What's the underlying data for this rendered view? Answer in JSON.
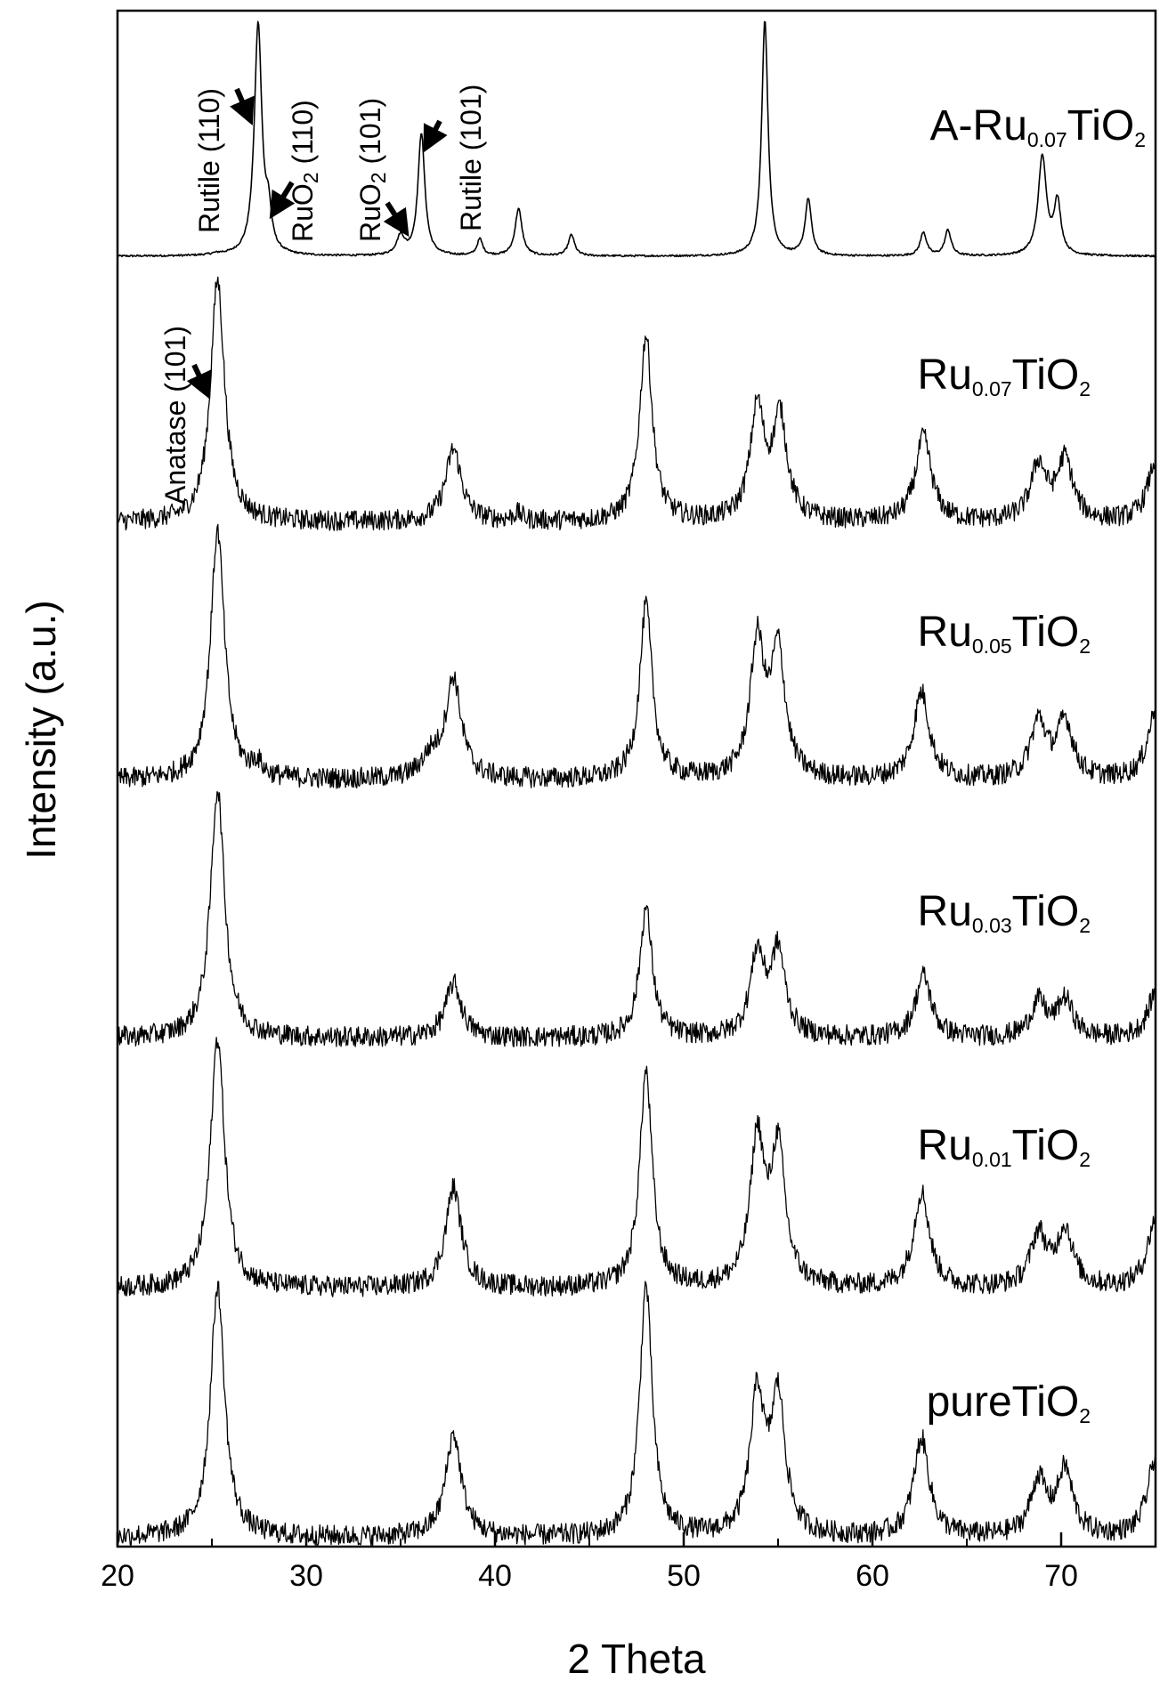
{
  "chart_data": {
    "type": "line",
    "xlabel": "2 Theta",
    "ylabel": "Intensity (a.u.)",
    "xlim": [
      20,
      75
    ],
    "xticks": [
      20,
      30,
      40,
      50,
      60,
      70
    ],
    "xtick_labels": [
      "20",
      "30",
      "40",
      "50",
      "60",
      "70"
    ],
    "grid": false,
    "legend": "none",
    "line_color": "#000000",
    "series": [
      {
        "name": "A-Ru0.07TiO2",
        "label_main": "A-Ru",
        "label_sub": "0.07",
        "label_tail": "TiO",
        "label_tail_sub": "2",
        "peaks": [
          {
            "x": 25.3,
            "h": 0.006,
            "w": 0.4
          },
          {
            "x": 27.45,
            "h": 0.98,
            "w": 0.24
          },
          {
            "x": 28.0,
            "h": 0.15,
            "w": 0.18
          },
          {
            "x": 35.0,
            "h": 0.08,
            "w": 0.25
          },
          {
            "x": 36.1,
            "h": 0.52,
            "w": 0.22
          },
          {
            "x": 39.2,
            "h": 0.07,
            "w": 0.18
          },
          {
            "x": 41.25,
            "h": 0.2,
            "w": 0.22
          },
          {
            "x": 44.05,
            "h": 0.09,
            "w": 0.2
          },
          {
            "x": 54.3,
            "h": 1.0,
            "w": 0.2
          },
          {
            "x": 56.6,
            "h": 0.24,
            "w": 0.2
          },
          {
            "x": 62.7,
            "h": 0.1,
            "w": 0.2
          },
          {
            "x": 64.0,
            "h": 0.11,
            "w": 0.2
          },
          {
            "x": 69.0,
            "h": 0.42,
            "w": 0.26
          },
          {
            "x": 69.8,
            "h": 0.22,
            "w": 0.22
          }
        ],
        "noise": 0.004
      },
      {
        "name": "Ru0.07TiO2",
        "label_main": "Ru",
        "label_sub": "0.07",
        "label_tail": "TiO",
        "label_tail_sub": "2",
        "peaks": [
          {
            "x": 25.3,
            "h": 1.0,
            "w": 0.45
          },
          {
            "x": 37.8,
            "h": 0.3,
            "w": 0.5
          },
          {
            "x": 41.2,
            "h": 0.03,
            "w": 0.3
          },
          {
            "x": 48.0,
            "h": 0.77,
            "w": 0.4
          },
          {
            "x": 53.9,
            "h": 0.46,
            "w": 0.45
          },
          {
            "x": 55.1,
            "h": 0.42,
            "w": 0.45
          },
          {
            "x": 62.7,
            "h": 0.35,
            "w": 0.5
          },
          {
            "x": 68.8,
            "h": 0.23,
            "w": 0.5
          },
          {
            "x": 70.2,
            "h": 0.25,
            "w": 0.5
          },
          {
            "x": 75.0,
            "h": 0.25,
            "w": 0.5
          }
        ],
        "noise": 0.03
      },
      {
        "name": "Ru0.05TiO2",
        "label_main": "Ru",
        "label_sub": "0.05",
        "label_tail": "TiO",
        "label_tail_sub": "2",
        "peaks": [
          {
            "x": 25.3,
            "h": 1.0,
            "w": 0.45
          },
          {
            "x": 27.4,
            "h": 0.05,
            "w": 0.3
          },
          {
            "x": 36.6,
            "h": 0.08,
            "w": 0.6
          },
          {
            "x": 37.8,
            "h": 0.4,
            "w": 0.5
          },
          {
            "x": 48.0,
            "h": 0.7,
            "w": 0.4
          },
          {
            "x": 53.9,
            "h": 0.54,
            "w": 0.45
          },
          {
            "x": 55.0,
            "h": 0.5,
            "w": 0.45
          },
          {
            "x": 62.6,
            "h": 0.35,
            "w": 0.5
          },
          {
            "x": 68.8,
            "h": 0.23,
            "w": 0.5
          },
          {
            "x": 70.2,
            "h": 0.23,
            "w": 0.5
          },
          {
            "x": 75.0,
            "h": 0.28,
            "w": 0.5
          }
        ],
        "noise": 0.03
      },
      {
        "name": "Ru0.03TiO2",
        "label_main": "Ru",
        "label_sub": "0.03",
        "label_tail": "TiO",
        "label_tail_sub": "2",
        "peaks": [
          {
            "x": 25.3,
            "h": 1.0,
            "w": 0.45
          },
          {
            "x": 37.8,
            "h": 0.22,
            "w": 0.5
          },
          {
            "x": 48.0,
            "h": 0.52,
            "w": 0.4
          },
          {
            "x": 53.9,
            "h": 0.33,
            "w": 0.45
          },
          {
            "x": 55.0,
            "h": 0.34,
            "w": 0.45
          },
          {
            "x": 62.7,
            "h": 0.25,
            "w": 0.5
          },
          {
            "x": 68.8,
            "h": 0.14,
            "w": 0.5
          },
          {
            "x": 70.2,
            "h": 0.15,
            "w": 0.5
          },
          {
            "x": 75.0,
            "h": 0.18,
            "w": 0.5
          }
        ],
        "noise": 0.03
      },
      {
        "name": "Ru0.01TiO2",
        "label_main": "Ru",
        "label_sub": "0.01",
        "label_tail": "TiO",
        "label_tail_sub": "2",
        "peaks": [
          {
            "x": 25.3,
            "h": 1.0,
            "w": 0.45
          },
          {
            "x": 37.8,
            "h": 0.4,
            "w": 0.5
          },
          {
            "x": 48.0,
            "h": 0.86,
            "w": 0.4
          },
          {
            "x": 53.9,
            "h": 0.58,
            "w": 0.45
          },
          {
            "x": 55.0,
            "h": 0.54,
            "w": 0.45
          },
          {
            "x": 62.6,
            "h": 0.38,
            "w": 0.5
          },
          {
            "x": 68.8,
            "h": 0.21,
            "w": 0.5
          },
          {
            "x": 70.2,
            "h": 0.23,
            "w": 0.5
          },
          {
            "x": 75.0,
            "h": 0.28,
            "w": 0.5
          }
        ],
        "noise": 0.03
      },
      {
        "name": "pureTiO2",
        "label_main": "pureTiO",
        "label_sub": "2",
        "label_tail": "",
        "label_tail_sub": "",
        "peaks": [
          {
            "x": 25.3,
            "h": 1.0,
            "w": 0.45
          },
          {
            "x": 37.8,
            "h": 0.41,
            "w": 0.5
          },
          {
            "x": 48.0,
            "h": 1.0,
            "w": 0.4
          },
          {
            "x": 53.9,
            "h": 0.55,
            "w": 0.45
          },
          {
            "x": 55.0,
            "h": 0.54,
            "w": 0.45
          },
          {
            "x": 62.6,
            "h": 0.39,
            "w": 0.5
          },
          {
            "x": 68.8,
            "h": 0.22,
            "w": 0.5
          },
          {
            "x": 70.2,
            "h": 0.26,
            "w": 0.5
          },
          {
            "x": 75.0,
            "h": 0.32,
            "w": 0.5
          }
        ],
        "noise": 0.03
      }
    ],
    "annotations": [
      {
        "id": "rutile-110",
        "main": "Rutile (110)",
        "sub": "",
        "tail": "",
        "x": 27.45,
        "series": "A-Ru0.07TiO2"
      },
      {
        "id": "ruo2-110",
        "main": "RuO",
        "sub": "2",
        "tail": " (110)",
        "x": 28.0,
        "series": "A-Ru0.07TiO2"
      },
      {
        "id": "ruo2-101",
        "main": "RuO",
        "sub": "2",
        "tail": " (101)",
        "x": 35.0,
        "series": "A-Ru0.07TiO2"
      },
      {
        "id": "rutile-101",
        "main": "Rutile (101)",
        "sub": "",
        "tail": "",
        "x": 36.1,
        "series": "A-Ru0.07TiO2"
      },
      {
        "id": "anatase-101",
        "main": "Anatase (101)",
        "sub": "",
        "tail": "",
        "x": 25.3,
        "series": "Ru0.07TiO2"
      }
    ]
  }
}
